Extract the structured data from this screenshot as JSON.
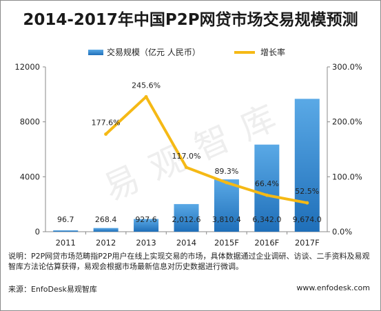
{
  "title": "2014-2017年中国P2P网贷市场交易规模预测",
  "watermark": "易观智库",
  "note": "说明：P2P网贷市场范畴指P2P用户在线上实现交易的市场，具体数据通过企业调研、访谈、二手资料及易观智库方法论估算获得，易观会根据市场最新信息对历史数据进行微调。",
  "source": "来源：EnfoDesk易观智库",
  "website": "www.enfodesk.com",
  "colors": {
    "bar_top": "#5aa9e6",
    "bar_bottom": "#1f6fb9",
    "line": "#f5b915"
  },
  "chart_data": {
    "type": "bar",
    "categories": [
      "2011",
      "2012",
      "2013",
      "2014",
      "2015F",
      "2016F",
      "2017F"
    ],
    "series": [
      {
        "name": "交易规模（亿元 人民币）",
        "axis": "left",
        "values": [
          96.7,
          268.4,
          927.6,
          2012.6,
          3810.4,
          6342.0,
          9674.0
        ],
        "labels": [
          "96.7",
          "268.4",
          "927.6",
          "2,012.6",
          "3,810.4",
          "6,342.0",
          "9,674.0"
        ]
      },
      {
        "name": "增长率",
        "type": "line",
        "axis": "right",
        "values": [
          null,
          177.6,
          245.6,
          117.0,
          89.3,
          66.4,
          52.5
        ],
        "labels": [
          "",
          "177.6%",
          "245.6%",
          "117.0%",
          "89.3%",
          "66.4%",
          "52.5%"
        ]
      }
    ],
    "y_left": {
      "ylim": [
        0,
        12000
      ],
      "ticks": [
        "0",
        "4000",
        "8000",
        "12000"
      ]
    },
    "y_right": {
      "ylim": [
        0,
        300
      ],
      "ticks": [
        "0.0%",
        "100.0%",
        "200.0%",
        "300.0%"
      ]
    },
    "legend_position": "top"
  }
}
